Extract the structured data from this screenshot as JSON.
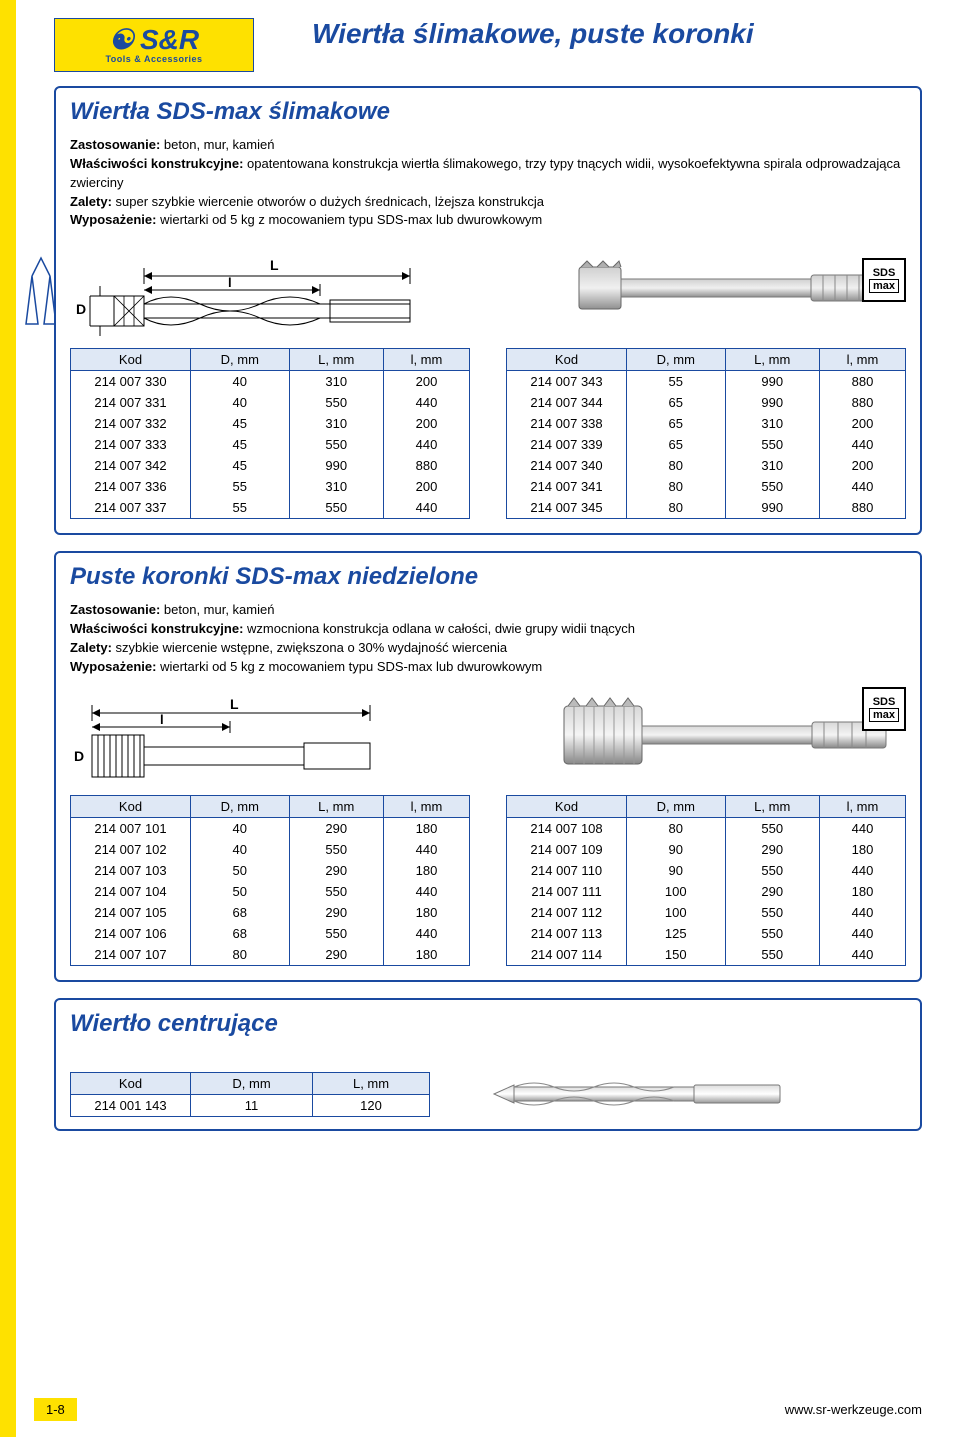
{
  "brand": {
    "logo_main": "S&R",
    "logo_sub": "Tools & Accessories"
  },
  "page_title": "Wiertła ślimakowe, puste koronki",
  "section1": {
    "title": "Wiertła SDS-max ślimakowe",
    "app_label": "Zastosowanie:",
    "app_text": " beton, mur, kamień",
    "feat_label": "Właściwości konstrukcyjne:",
    "feat_text": " opatentowana konstrukcja wiertła ślimakowego, trzy typy tnących widii, wysokoefektywna spirala odprowadzająca zwierciny",
    "adv_label": "Zalety:",
    "adv_text": " super szybkie wiercenie otworów o dużych średnicach, lżejsza konstrukcja",
    "eq_label": "Wyposażenie:",
    "eq_text": " wiertarki od 5 kg z mocowaniem typu SDS-max lub dwurowkowym",
    "badge1": "SDS",
    "badge2": "max",
    "table_headers": [
      "Kod",
      "D, mm",
      "L, mm",
      "l, mm"
    ],
    "table_left": [
      [
        "214 007 330",
        "40",
        "310",
        "200"
      ],
      [
        "214 007 331",
        "40",
        "550",
        "440"
      ],
      [
        "214 007 332",
        "45",
        "310",
        "200"
      ],
      [
        "214 007 333",
        "45",
        "550",
        "440"
      ],
      [
        "214 007 342",
        "45",
        "990",
        "880"
      ],
      [
        "214 007 336",
        "55",
        "310",
        "200"
      ],
      [
        "214 007 337",
        "55",
        "550",
        "440"
      ]
    ],
    "table_right": [
      [
        "214 007 343",
        "55",
        "990",
        "880"
      ],
      [
        "214 007 344",
        "65",
        "990",
        "880"
      ],
      [
        "214 007 338",
        "65",
        "310",
        "200"
      ],
      [
        "214 007 339",
        "65",
        "550",
        "440"
      ],
      [
        "214 007 340",
        "80",
        "310",
        "200"
      ],
      [
        "214 007 341",
        "80",
        "550",
        "440"
      ],
      [
        "214 007 345",
        "80",
        "990",
        "880"
      ]
    ]
  },
  "section2": {
    "title": "Puste koronki SDS-max niedzielone",
    "app_label": "Zastosowanie:",
    "app_text": " beton, mur, kamień",
    "feat_label": "Właściwości konstrukcyjne:",
    "feat_text": " wzmocniona konstrukcja odlana w całości, dwie grupy widii tnących",
    "adv_label": "Zalety:",
    "adv_text": " szybkie wiercenie wstępne, zwiększona o 30% wydajność wiercenia",
    "eq_label": "Wyposażenie:",
    "eq_text": " wiertarki od 5 kg z mocowaniem typu SDS-max lub dwurowkowym",
    "badge1": "SDS",
    "badge2": "max",
    "table_headers": [
      "Kod",
      "D, mm",
      "L, mm",
      "l, mm"
    ],
    "table_left": [
      [
        "214 007 101",
        "40",
        "290",
        "180"
      ],
      [
        "214 007 102",
        "40",
        "550",
        "440"
      ],
      [
        "214 007 103",
        "50",
        "290",
        "180"
      ],
      [
        "214 007 104",
        "50",
        "550",
        "440"
      ],
      [
        "214 007 105",
        "68",
        "290",
        "180"
      ],
      [
        "214 007 106",
        "68",
        "550",
        "440"
      ],
      [
        "214 007 107",
        "80",
        "290",
        "180"
      ]
    ],
    "table_right": [
      [
        "214 007 108",
        "80",
        "550",
        "440"
      ],
      [
        "214 007 109",
        "90",
        "290",
        "180"
      ],
      [
        "214 007 110",
        "90",
        "550",
        "440"
      ],
      [
        "214 007 111",
        "100",
        "290",
        "180"
      ],
      [
        "214 007 112",
        "100",
        "550",
        "440"
      ],
      [
        "214 007 113",
        "125",
        "550",
        "440"
      ],
      [
        "214 007 114",
        "150",
        "550",
        "440"
      ]
    ]
  },
  "section3": {
    "title": "Wiertło centrujące",
    "table_headers": [
      "Kod",
      "D, mm",
      "L, mm"
    ],
    "row": [
      "214 001 143",
      "11",
      "120"
    ]
  },
  "footer": {
    "page": "1-8",
    "url": "www.sr-werkzeuge.com"
  },
  "colors": {
    "accent": "#fee100",
    "brand": "#1a4aa0",
    "th_bg": "#dfe8f5"
  }
}
